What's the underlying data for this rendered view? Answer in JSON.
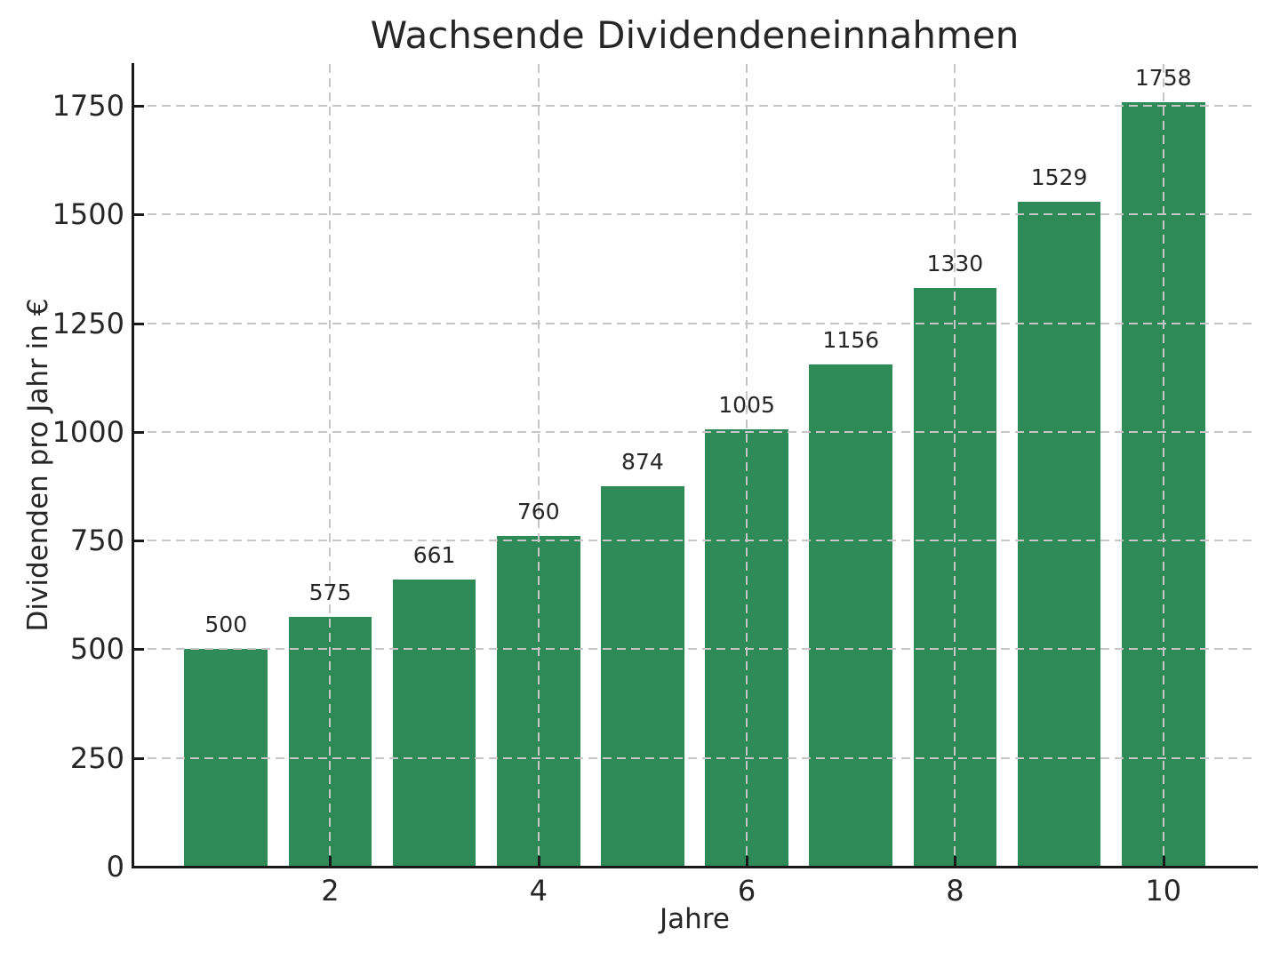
{
  "chart_data": {
    "type": "bar",
    "title": "Wachsende Dividendeneinnahmen",
    "xlabel": "Jahre",
    "ylabel": "Dividenden pro Jahr in €",
    "categories": [
      1,
      2,
      3,
      4,
      5,
      6,
      7,
      8,
      9,
      10
    ],
    "values": [
      500,
      575,
      661,
      760,
      874,
      1005,
      1156,
      1330,
      1529,
      1758
    ],
    "bar_labels": [
      "500",
      "575",
      "661",
      "760",
      "874",
      "1005",
      "1156",
      "1330",
      "1529",
      "1758"
    ],
    "xticks": [
      2,
      4,
      6,
      8,
      10
    ],
    "yticks": [
      0,
      250,
      500,
      750,
      1000,
      1250,
      1500,
      1750
    ],
    "xlim": [
      0.11,
      10.89
    ],
    "ylim": [
      0,
      1846
    ],
    "bar_width": 0.8,
    "grid": true,
    "grid_style": "dashed",
    "grid_above_bars": true,
    "tick_direction": "in",
    "legend": null,
    "colors": {
      "bar": "#2e8b57",
      "grid": "#c6c6c6",
      "axis": "#1a1a1a",
      "text": "#262626",
      "background": "#ffffff"
    }
  }
}
